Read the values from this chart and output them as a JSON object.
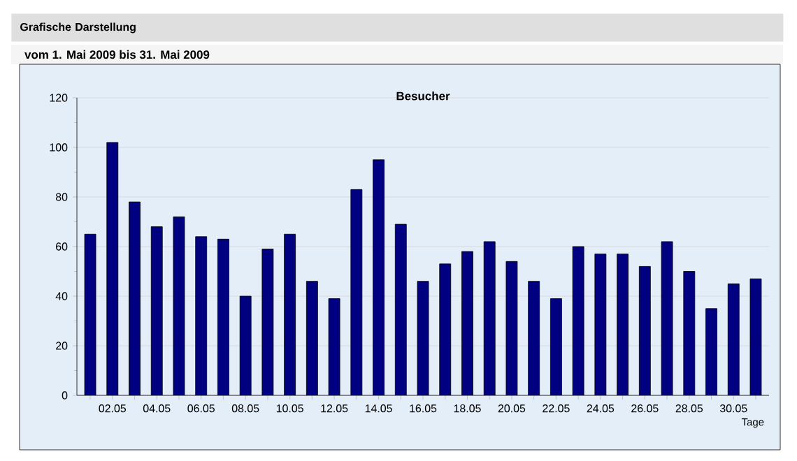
{
  "chart_data": {
    "type": "bar",
    "title": "Besucher",
    "subtitle": "vom 1. Mai 2009  bis  31. Mai 2009",
    "annotations": [
      "Grafische Darstellung"
    ],
    "xlabel": "Tage",
    "categories": [
      null,
      "02.05",
      null,
      "04.05",
      null,
      "06.05",
      null,
      "08.05",
      null,
      "10.05",
      null,
      "12.05",
      null,
      "14.05",
      null,
      "16.05",
      null,
      "18.05",
      null,
      "20.05",
      null,
      "22.05",
      null,
      "24.05",
      null,
      "26.05",
      null,
      "28.05",
      null,
      "30.05",
      null
    ],
    "values": [
      65,
      102,
      78,
      68,
      72,
      64,
      63,
      40,
      59,
      65,
      46,
      39,
      83,
      95,
      69,
      46,
      53,
      58,
      62,
      54,
      46,
      39,
      60,
      57,
      57,
      52,
      62,
      50,
      35,
      45,
      47
    ],
    "color": "#000080",
    "ylim": [
      0,
      120
    ],
    "yticks": [
      0,
      20,
      40,
      60,
      80,
      100,
      120
    ],
    "grid": "y"
  }
}
